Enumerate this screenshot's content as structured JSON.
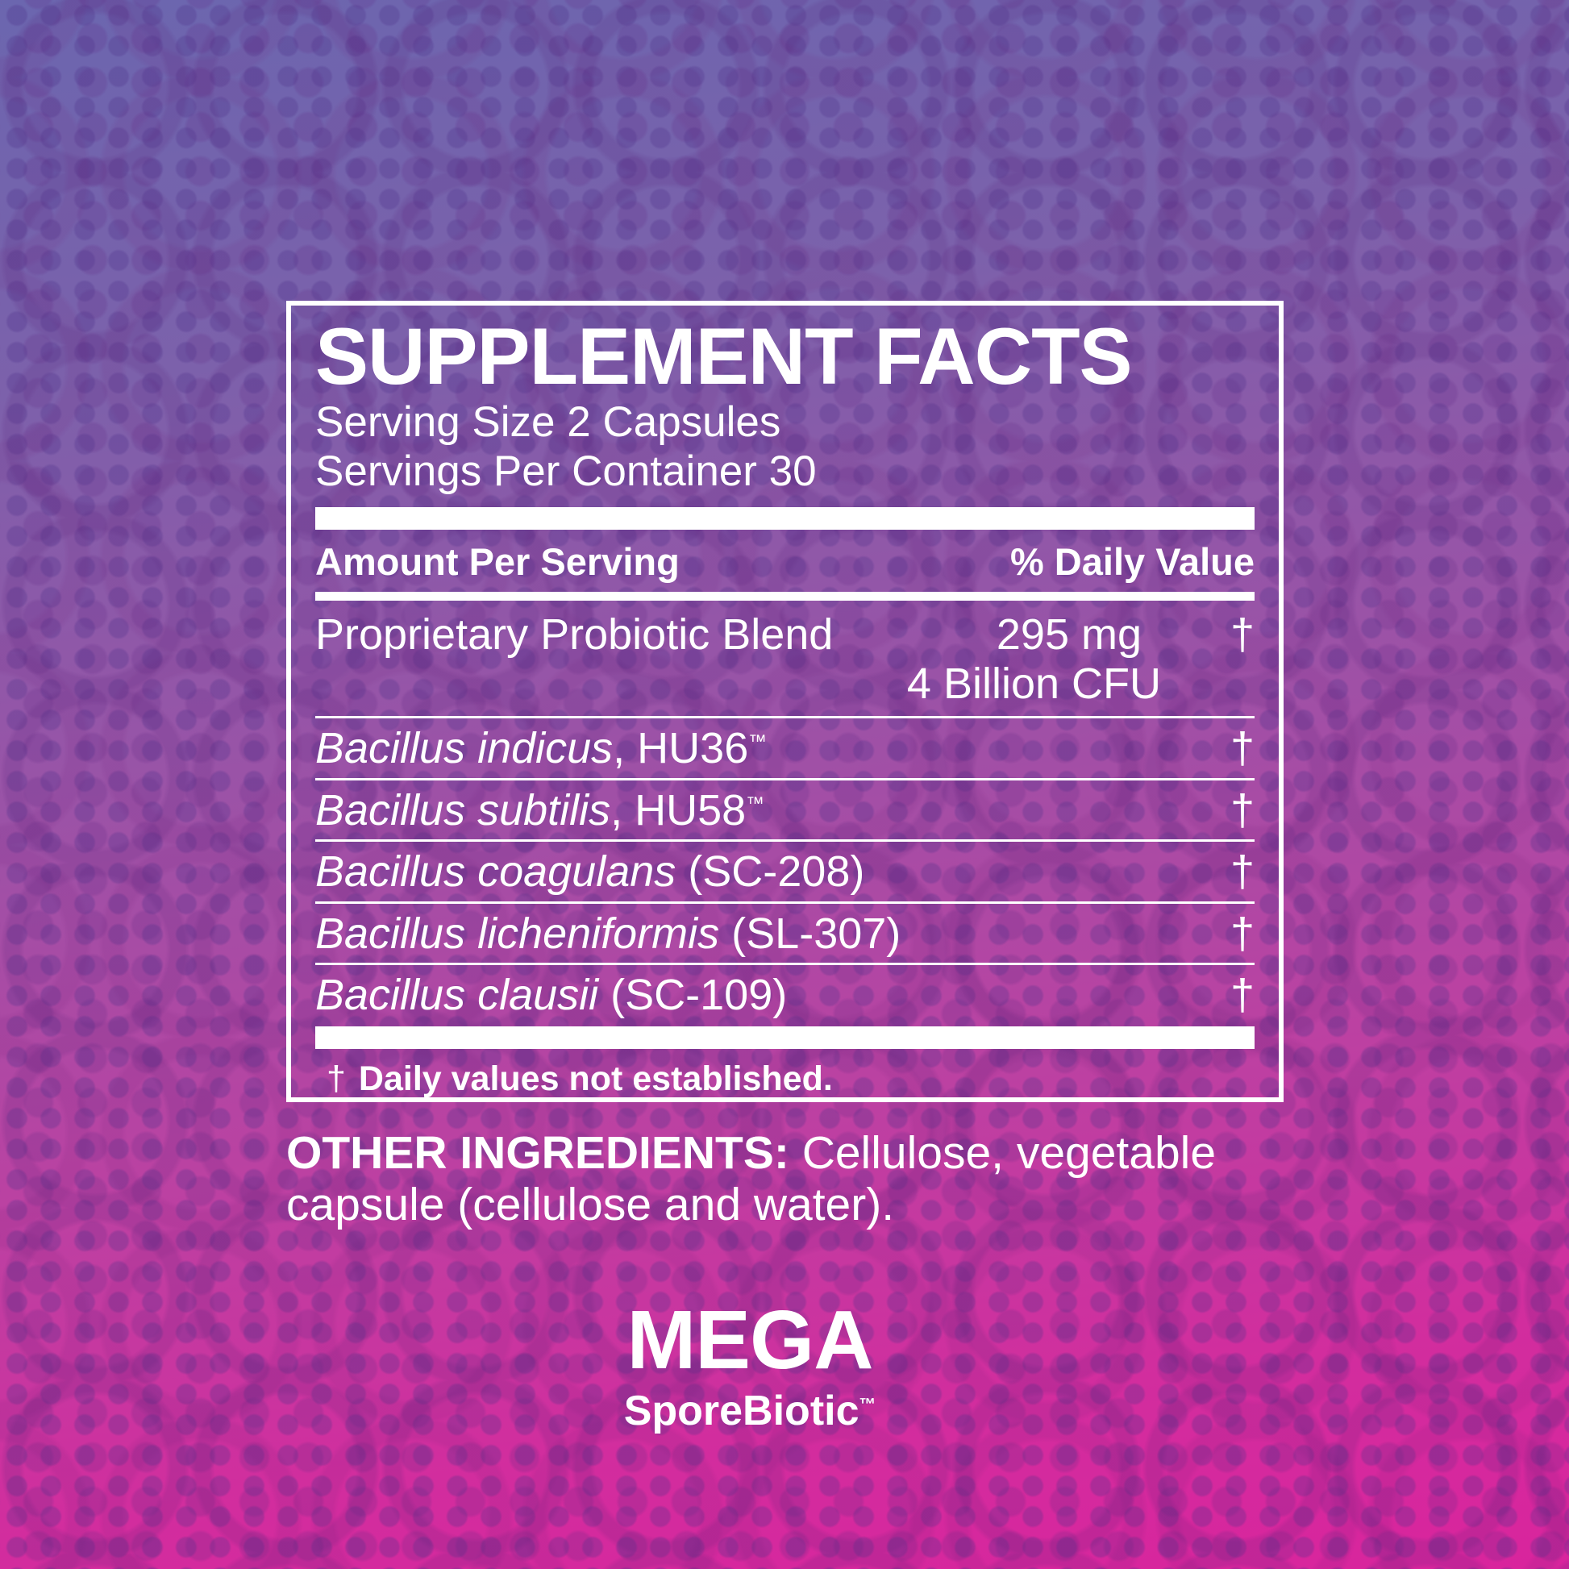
{
  "colors": {
    "text": "#ffffff",
    "gradient_top": "#6b66af",
    "gradient_middle": "#9a53a7",
    "gradient_bottom": "#d9249d"
  },
  "panel": {
    "title": "SUPPLEMENT FACTS",
    "serving_size": "Serving Size 2 Capsules",
    "servings_per_container": "Servings Per Container 30",
    "columns": {
      "amount": "Amount Per Serving",
      "daily_value": "% Daily Value"
    },
    "blend": {
      "name": "Proprietary Probiotic Blend",
      "amount": "295 mg",
      "cfu": "4 Billion CFU",
      "dv": "†"
    },
    "ingredients": [
      {
        "species": "Bacillus indicus",
        "suffix": ", HU36",
        "tm": "™",
        "dv": "†"
      },
      {
        "species": "Bacillus subtilis",
        "suffix": ", HU58",
        "tm": "™",
        "dv": "†"
      },
      {
        "species": "Bacillus coagulans",
        "suffix": " (SC-208)",
        "dv": "†"
      },
      {
        "species": "Bacillus licheniformis",
        "suffix": " (SL-307)",
        "dv": "†"
      },
      {
        "species": "Bacillus clausii",
        "suffix": " (SC-109)",
        "dv": "†"
      }
    ],
    "footnote": {
      "symbol": "†",
      "text": "Daily values not established."
    }
  },
  "other_ingredients": {
    "label": "OTHER INGREDIENTS:",
    "text": " Cellulose, vegetable capsule (cellulose and water)."
  },
  "logo": {
    "name": "MEGA",
    "sub": "SporeBiotic",
    "tm": "™"
  }
}
